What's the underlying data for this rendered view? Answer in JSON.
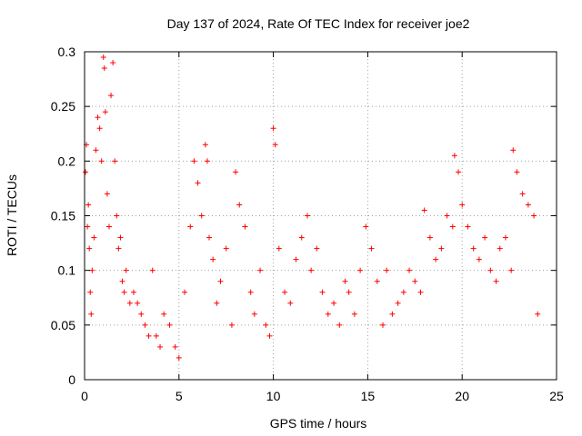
{
  "chart_data": {
    "type": "scatter",
    "title": "Day 137 of 2024, Rate Of TEC Index for receiver joe2",
    "xlabel": "GPS time / hours",
    "ylabel": "ROTI / TECUs",
    "xlim": [
      0,
      25
    ],
    "ylim": [
      0,
      0.3
    ],
    "xticks": [
      0,
      5,
      10,
      15,
      20,
      25
    ],
    "xtick_labels": [
      "0",
      "5",
      "10",
      "15",
      "20",
      "25"
    ],
    "yticks": [
      0,
      0.05,
      0.1,
      0.15,
      0.2,
      0.25,
      0.3
    ],
    "ytick_labels": [
      "0",
      "0.05",
      "0.1",
      "0.15",
      "0.2",
      "0.25",
      "0.3"
    ],
    "grid": true,
    "marker": "plus",
    "color": "#ff0000",
    "series": [
      {
        "name": "ROTI",
        "x": [
          0.05,
          0.1,
          0.15,
          0.2,
          0.25,
          0.3,
          0.35,
          0.4,
          0.5,
          0.6,
          0.7,
          0.8,
          0.9,
          1.0,
          1.05,
          1.1,
          1.2,
          1.3,
          1.4,
          1.5,
          1.6,
          1.7,
          1.8,
          1.9,
          2.0,
          2.1,
          2.2,
          2.4,
          2.6,
          2.8,
          3.0,
          3.2,
          3.4,
          3.6,
          3.8,
          4.0,
          4.2,
          4.5,
          4.8,
          5.0,
          5.3,
          5.6,
          5.8,
          6.0,
          6.2,
          6.4,
          6.5,
          6.6,
          6.8,
          7.0,
          7.2,
          7.5,
          7.8,
          8.0,
          8.2,
          8.5,
          8.8,
          9.0,
          9.3,
          9.6,
          9.8,
          10.0,
          10.1,
          10.3,
          10.6,
          10.9,
          11.2,
          11.5,
          11.8,
          12.0,
          12.3,
          12.6,
          12.9,
          13.2,
          13.5,
          13.8,
          14.0,
          14.3,
          14.6,
          14.9,
          15.2,
          15.5,
          15.8,
          16.0,
          16.3,
          16.6,
          16.9,
          17.2,
          17.5,
          17.8,
          18.0,
          18.3,
          18.6,
          18.9,
          19.2,
          19.5,
          19.6,
          19.8,
          20.0,
          20.3,
          20.6,
          20.9,
          21.2,
          21.5,
          21.8,
          22.0,
          22.3,
          22.6,
          22.7,
          22.9,
          23.2,
          23.5,
          23.8,
          24.0
        ],
        "y": [
          0.19,
          0.215,
          0.14,
          0.16,
          0.12,
          0.08,
          0.06,
          0.1,
          0.13,
          0.21,
          0.24,
          0.23,
          0.2,
          0.295,
          0.285,
          0.245,
          0.17,
          0.14,
          0.26,
          0.29,
          0.2,
          0.15,
          0.12,
          0.13,
          0.09,
          0.08,
          0.1,
          0.07,
          0.08,
          0.07,
          0.06,
          0.05,
          0.04,
          0.1,
          0.04,
          0.03,
          0.06,
          0.05,
          0.03,
          0.02,
          0.08,
          0.14,
          0.2,
          0.18,
          0.15,
          0.215,
          0.2,
          0.13,
          0.11,
          0.07,
          0.09,
          0.12,
          0.05,
          0.19,
          0.16,
          0.14,
          0.08,
          0.06,
          0.1,
          0.05,
          0.04,
          0.23,
          0.215,
          0.12,
          0.08,
          0.07,
          0.11,
          0.13,
          0.15,
          0.1,
          0.12,
          0.08,
          0.06,
          0.07,
          0.05,
          0.09,
          0.08,
          0.06,
          0.1,
          0.14,
          0.12,
          0.09,
          0.05,
          0.1,
          0.06,
          0.07,
          0.08,
          0.1,
          0.09,
          0.08,
          0.155,
          0.13,
          0.11,
          0.12,
          0.15,
          0.14,
          0.205,
          0.19,
          0.16,
          0.14,
          0.12,
          0.11,
          0.13,
          0.1,
          0.09,
          0.12,
          0.13,
          0.1,
          0.21,
          0.19,
          0.17,
          0.16,
          0.15,
          0.06
        ]
      }
    ]
  }
}
